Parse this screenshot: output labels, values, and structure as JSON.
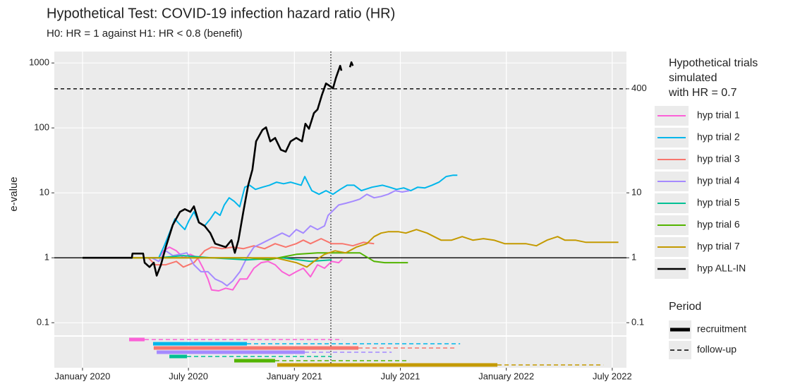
{
  "chart_data": {
    "type": "line",
    "title": "Hypothetical Test: COVID-19 infection hazard ratio (HR)",
    "subtitle": "H0: HR = 1 against H1: HR < 0.8 (benefit)",
    "y_label": "e-value",
    "log_y": true,
    "grid": true,
    "xlim": [
      2019.867,
      2022.567
    ],
    "xticks": [
      {
        "value": 2020.0,
        "label": "January 2020"
      },
      {
        "value": 2020.5,
        "label": "July 2020"
      },
      {
        "value": 2021.0,
        "label": "January 2021"
      },
      {
        "value": 2021.5,
        "label": "July 2021"
      },
      {
        "value": 2022.0,
        "label": "January 2022"
      },
      {
        "value": 2022.5,
        "label": "July 2022"
      }
    ],
    "ylim": [
      0.064,
      1500
    ],
    "yticks": [
      0.1,
      1,
      10,
      100,
      1000
    ],
    "y2lim": [
      0.064,
      1500
    ],
    "y2ticks": [
      0.1,
      1,
      10,
      400
    ],
    "hlines": [
      {
        "value": 400,
        "style": "dashed"
      },
      {
        "value": 1,
        "style": "solid"
      }
    ],
    "vline": 2021.172,
    "legend_title": [
      "Hypothetical trials",
      " simulated",
      " with HR = 0.7"
    ],
    "period_legend": {
      "title": "Period",
      "items": [
        "recruitment",
        "follow-up"
      ]
    },
    "series": [
      {
        "name": "hyp trial 1",
        "color": "#FB61D7",
        "x": [
          2020.0,
          2020.36,
          2020.383,
          2020.41,
          2020.443,
          2020.476,
          2020.509,
          2020.543,
          2020.569,
          2020.592,
          2020.609,
          2020.643,
          2020.676,
          2020.709,
          2020.743,
          2020.776,
          2020.809,
          2020.843,
          2020.876,
          2020.909,
          2020.942,
          2020.976,
          2021.009,
          2021.042,
          2021.076,
          2021.109,
          2021.142,
          2021.176,
          2021.209,
          2021.226
        ],
        "values": [
          1,
          1,
          1.28,
          1.46,
          1.28,
          1,
          1.13,
          1,
          0.69,
          0.47,
          0.32,
          0.31,
          0.34,
          0.32,
          0.47,
          0.47,
          0.69,
          0.84,
          0.88,
          0.78,
          0.61,
          0.53,
          0.61,
          0.69,
          0.51,
          0.78,
          0.69,
          0.88,
          0.84,
          0.95
        ]
      },
      {
        "name": "hyp trial 2",
        "color": "#00B6EB",
        "x": [
          2020.0,
          2020.36,
          2020.383,
          2020.41,
          2020.436,
          2020.46,
          2020.483,
          2020.503,
          2020.526,
          2020.549,
          2020.576,
          2020.603,
          2020.626,
          2020.649,
          2020.669,
          2020.692,
          2020.716,
          2020.742,
          2020.766,
          2020.789,
          2020.816,
          2020.849,
          2020.882,
          2020.916,
          2020.949,
          2020.982,
          2021.032,
          2021.049,
          2021.082,
          2021.116,
          2021.149,
          2021.182,
          2021.216,
          2021.249,
          2021.282,
          2021.316,
          2021.366,
          2021.416,
          2021.449,
          2021.482,
          2021.516,
          2021.549,
          2021.582,
          2021.616,
          2021.649,
          2021.682,
          2021.716,
          2021.749,
          2021.769
        ],
        "values": [
          1,
          1,
          1.46,
          2.4,
          3.96,
          3.24,
          2.72,
          3.77,
          5.1,
          3.5,
          3.1,
          3.96,
          5.1,
          4.5,
          6.5,
          8.4,
          7.4,
          6.1,
          12.2,
          13.1,
          11.3,
          12.2,
          13.1,
          14.6,
          13.8,
          14.6,
          13.1,
          17.8,
          10.8,
          9.5,
          10.8,
          9.5,
          11.3,
          13.1,
          13.1,
          10.8,
          12.2,
          13.1,
          12.2,
          11.3,
          11.9,
          10.8,
          12.2,
          11.9,
          13.1,
          14.6,
          17.8,
          18.7,
          18.7
        ]
      },
      {
        "name": "hyp trial 3",
        "color": "#F8766D",
        "x": [
          2020.0,
          2020.31,
          2020.343,
          2020.393,
          2020.443,
          2020.476,
          2020.526,
          2020.576,
          2020.609,
          2020.659,
          2020.709,
          2020.759,
          2020.809,
          2020.859,
          2020.909,
          2020.959,
          2021.009,
          2021.042,
          2021.076,
          2021.126,
          2021.176,
          2021.226,
          2021.276,
          2021.326,
          2021.376
        ],
        "values": [
          1,
          1,
          0.78,
          0.78,
          0.88,
          0.72,
          0.84,
          1.28,
          1.46,
          1.38,
          1.46,
          1.38,
          1.53,
          1.38,
          1.65,
          1.46,
          1.65,
          1.87,
          1.65,
          1.97,
          1.65,
          1.65,
          1.53,
          1.73,
          1.65
        ]
      },
      {
        "name": "hyp trial 4",
        "color": "#A58AFF",
        "x": [
          2020.0,
          2020.326,
          2020.36,
          2020.393,
          2020.426,
          2020.46,
          2020.493,
          2020.526,
          2020.559,
          2020.592,
          2020.626,
          2020.659,
          2020.682,
          2020.709,
          2020.743,
          2020.776,
          2020.809,
          2020.843,
          2020.876,
          2020.909,
          2020.942,
          2020.976,
          2021.009,
          2021.042,
          2021.076,
          2021.109,
          2021.142,
          2021.159,
          2021.176,
          2021.209,
          2021.242,
          2021.276,
          2021.309,
          2021.342,
          2021.376,
          2021.409,
          2021.442,
          2021.476,
          2021.509,
          2021.542
        ],
        "values": [
          1,
          1,
          0.88,
          1.28,
          1.08,
          1.13,
          1.19,
          0.78,
          0.61,
          0.61,
          0.47,
          0.42,
          0.37,
          0.44,
          0.61,
          1,
          1.46,
          1.65,
          1.87,
          2.12,
          2.4,
          2.12,
          2.72,
          2.4,
          3.1,
          2.72,
          3.1,
          4.5,
          5.1,
          6.5,
          6.9,
          7.4,
          8.0,
          9.5,
          8.4,
          8.8,
          9.5,
          10.8,
          10.3,
          10.8
        ]
      },
      {
        "name": "hyp trial 5",
        "color": "#00C094",
        "x": [
          2020.0,
          2020.36,
          2020.476,
          2020.609,
          2020.776,
          2020.942,
          2021.076,
          2021.176
        ],
        "values": [
          1,
          1,
          1.08,
          1,
          0.93,
          1,
          0.88,
          0.93
        ]
      },
      {
        "name": "hyp trial 6",
        "color": "#53B400",
        "x": [
          2020.0,
          2020.792,
          2020.876,
          2021.009,
          2021.109,
          2021.209,
          2021.309,
          2021.376,
          2021.426,
          2021.536
        ],
        "values": [
          1,
          1,
          0.93,
          1.13,
          1.19,
          1.19,
          1.19,
          0.88,
          0.84,
          0.84
        ]
      },
      {
        "name": "hyp trial 7",
        "color": "#C49A00",
        "x": [
          2020.0,
          2020.909,
          2021.009,
          2021.059,
          2021.092,
          2021.142,
          2021.192,
          2021.242,
          2021.292,
          2021.342,
          2021.376,
          2021.409,
          2021.442,
          2021.492,
          2021.526,
          2021.576,
          2021.626,
          2021.659,
          2021.692,
          2021.742,
          2021.792,
          2021.842,
          2021.892,
          2021.942,
          2021.992,
          2022.042,
          2022.092,
          2022.142,
          2022.192,
          2022.242,
          2022.276,
          2022.326,
          2022.376,
          2022.426,
          2022.476,
          2022.529
        ],
        "values": [
          1,
          1,
          0.84,
          0.72,
          0.88,
          1.13,
          1.28,
          1.19,
          1.46,
          1.65,
          2.12,
          2.4,
          2.52,
          2.52,
          2.4,
          2.72,
          2.4,
          2.12,
          1.87,
          1.87,
          2.12,
          1.87,
          1.97,
          1.87,
          1.65,
          1.65,
          1.65,
          1.53,
          1.87,
          2.12,
          1.87,
          1.87,
          1.73,
          1.73,
          1.73,
          1.73
        ]
      },
      {
        "name": "hyp ALL-IN",
        "color": "#000000",
        "x": [
          2020.0,
          2020.233,
          2020.236,
          2020.286,
          2020.293,
          2020.316,
          2020.336,
          2020.35,
          2020.37,
          2020.393,
          2020.426,
          2020.46,
          2020.483,
          2020.509,
          2020.526,
          2020.549,
          2020.576,
          2020.603,
          2020.626,
          2020.676,
          2020.703,
          2020.719,
          2020.736,
          2020.759,
          2020.782,
          2020.802,
          2020.819,
          2020.849,
          2020.866,
          2020.886,
          2020.909,
          2020.936,
          2020.959,
          2020.982,
          2021.009,
          2021.036,
          2021.052,
          2021.069,
          2021.092,
          2021.109,
          2021.129,
          2021.149,
          2021.169,
          2021.182,
          2021.196,
          2021.216,
          2021.222,
          2021.242,
          2021.262,
          2021.269,
          2021.276
        ],
        "values": [
          1,
          1,
          1.16,
          1.16,
          0.84,
          0.72,
          0.84,
          0.53,
          0.78,
          1.46,
          3.2,
          5.1,
          5.6,
          5.1,
          6.2,
          3.5,
          3.1,
          2.4,
          1.65,
          1.46,
          1.87,
          1.19,
          1.87,
          5.1,
          13.1,
          22.8,
          62,
          93,
          102,
          62,
          70,
          46,
          43,
          62,
          70,
          62,
          116,
          97,
          169,
          192,
          316,
          484,
          438,
          406,
          591,
          905,
          759,
          null,
          861,
          1025,
          905
        ]
      }
    ],
    "periods": [
      {
        "recruitment": [
          2020.22,
          2020.293
        ],
        "follow_up_end": 2021.226
      },
      {
        "recruitment": [
          2020.333,
          2020.776
        ],
        "follow_up_end": 2021.782
      },
      {
        "recruitment": [
          2020.336,
          2021.302
        ],
        "follow_up_end": 2021.758
      },
      {
        "recruitment": [
          2020.35,
          2021.049
        ],
        "follow_up_end": 2021.459
      },
      {
        "recruitment": [
          2020.41,
          2020.493
        ],
        "follow_up_end": 2021.176
      },
      {
        "recruitment": [
          2020.716,
          2020.909
        ],
        "follow_up_end": 2021.542
      },
      {
        "recruitment": [
          2020.919,
          2021.958
        ],
        "follow_up_end": 2022.458
      }
    ]
  }
}
